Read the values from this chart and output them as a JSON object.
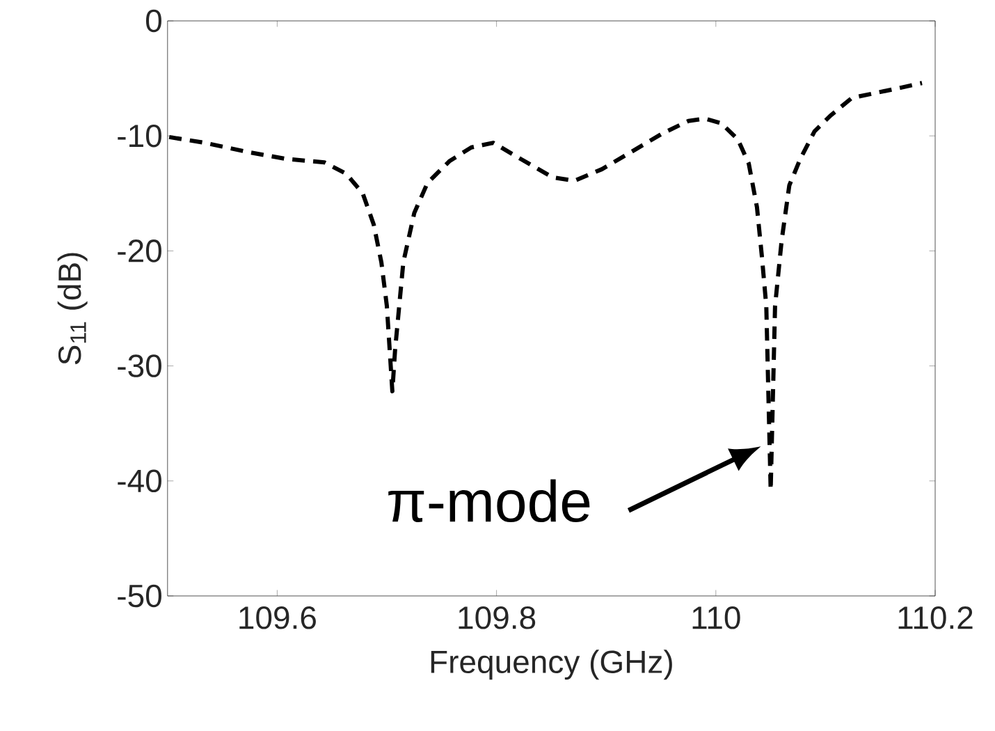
{
  "chart_data": {
    "type": "line",
    "xlabel": "Frequency (GHz)",
    "ylabel": "S$_{11}$ (dB)",
    "xlim": [
      109.5,
      110.2
    ],
    "xticks": [
      109.6,
      109.8,
      110,
      110.2
    ],
    "ylim": [
      -50,
      0
    ],
    "yticks": [
      -50,
      -40,
      -30,
      -20,
      -10,
      0
    ],
    "line_style": "dashed",
    "marker": "none",
    "series": [
      {
        "color": "#000000",
        "x": [
          109.5015,
          109.534,
          109.573,
          109.608,
          109.643,
          109.663,
          109.678,
          109.688,
          109.695,
          109.7,
          109.705,
          109.7075,
          109.715,
          109.725,
          109.737,
          109.757,
          109.777,
          109.797,
          109.822,
          109.851,
          109.871,
          109.896,
          109.921,
          109.951,
          109.975,
          109.99,
          110.005,
          110.02,
          110.03,
          110.0375,
          110.042,
          110.046,
          110.05,
          110.054,
          110.06,
          110.067,
          110.077,
          110.09,
          110.105,
          110.124,
          110.149,
          110.169,
          110.188
        ],
        "values": [
          -10.1,
          -10.6,
          -11.4,
          -12.0,
          -12.3,
          -13.3,
          -15.0,
          -17.7,
          -21.0,
          -24.8,
          -32.2,
          -28.6,
          -21.0,
          -16.7,
          -14.1,
          -12.2,
          -11.0,
          -10.6,
          -12.0,
          -13.6,
          -13.9,
          -12.9,
          -11.5,
          -9.8,
          -8.7,
          -8.5,
          -8.9,
          -10.3,
          -12.4,
          -16.2,
          -20.5,
          -24.8,
          -40.8,
          -24.8,
          -19.1,
          -14.3,
          -12.0,
          -9.6,
          -8.2,
          -6.7,
          -6.2,
          -5.8,
          -5.4
        ]
      }
    ],
    "annotations": [
      {
        "text": "π-mode",
        "x": 110.041,
        "y": -37
      }
    ]
  }
}
